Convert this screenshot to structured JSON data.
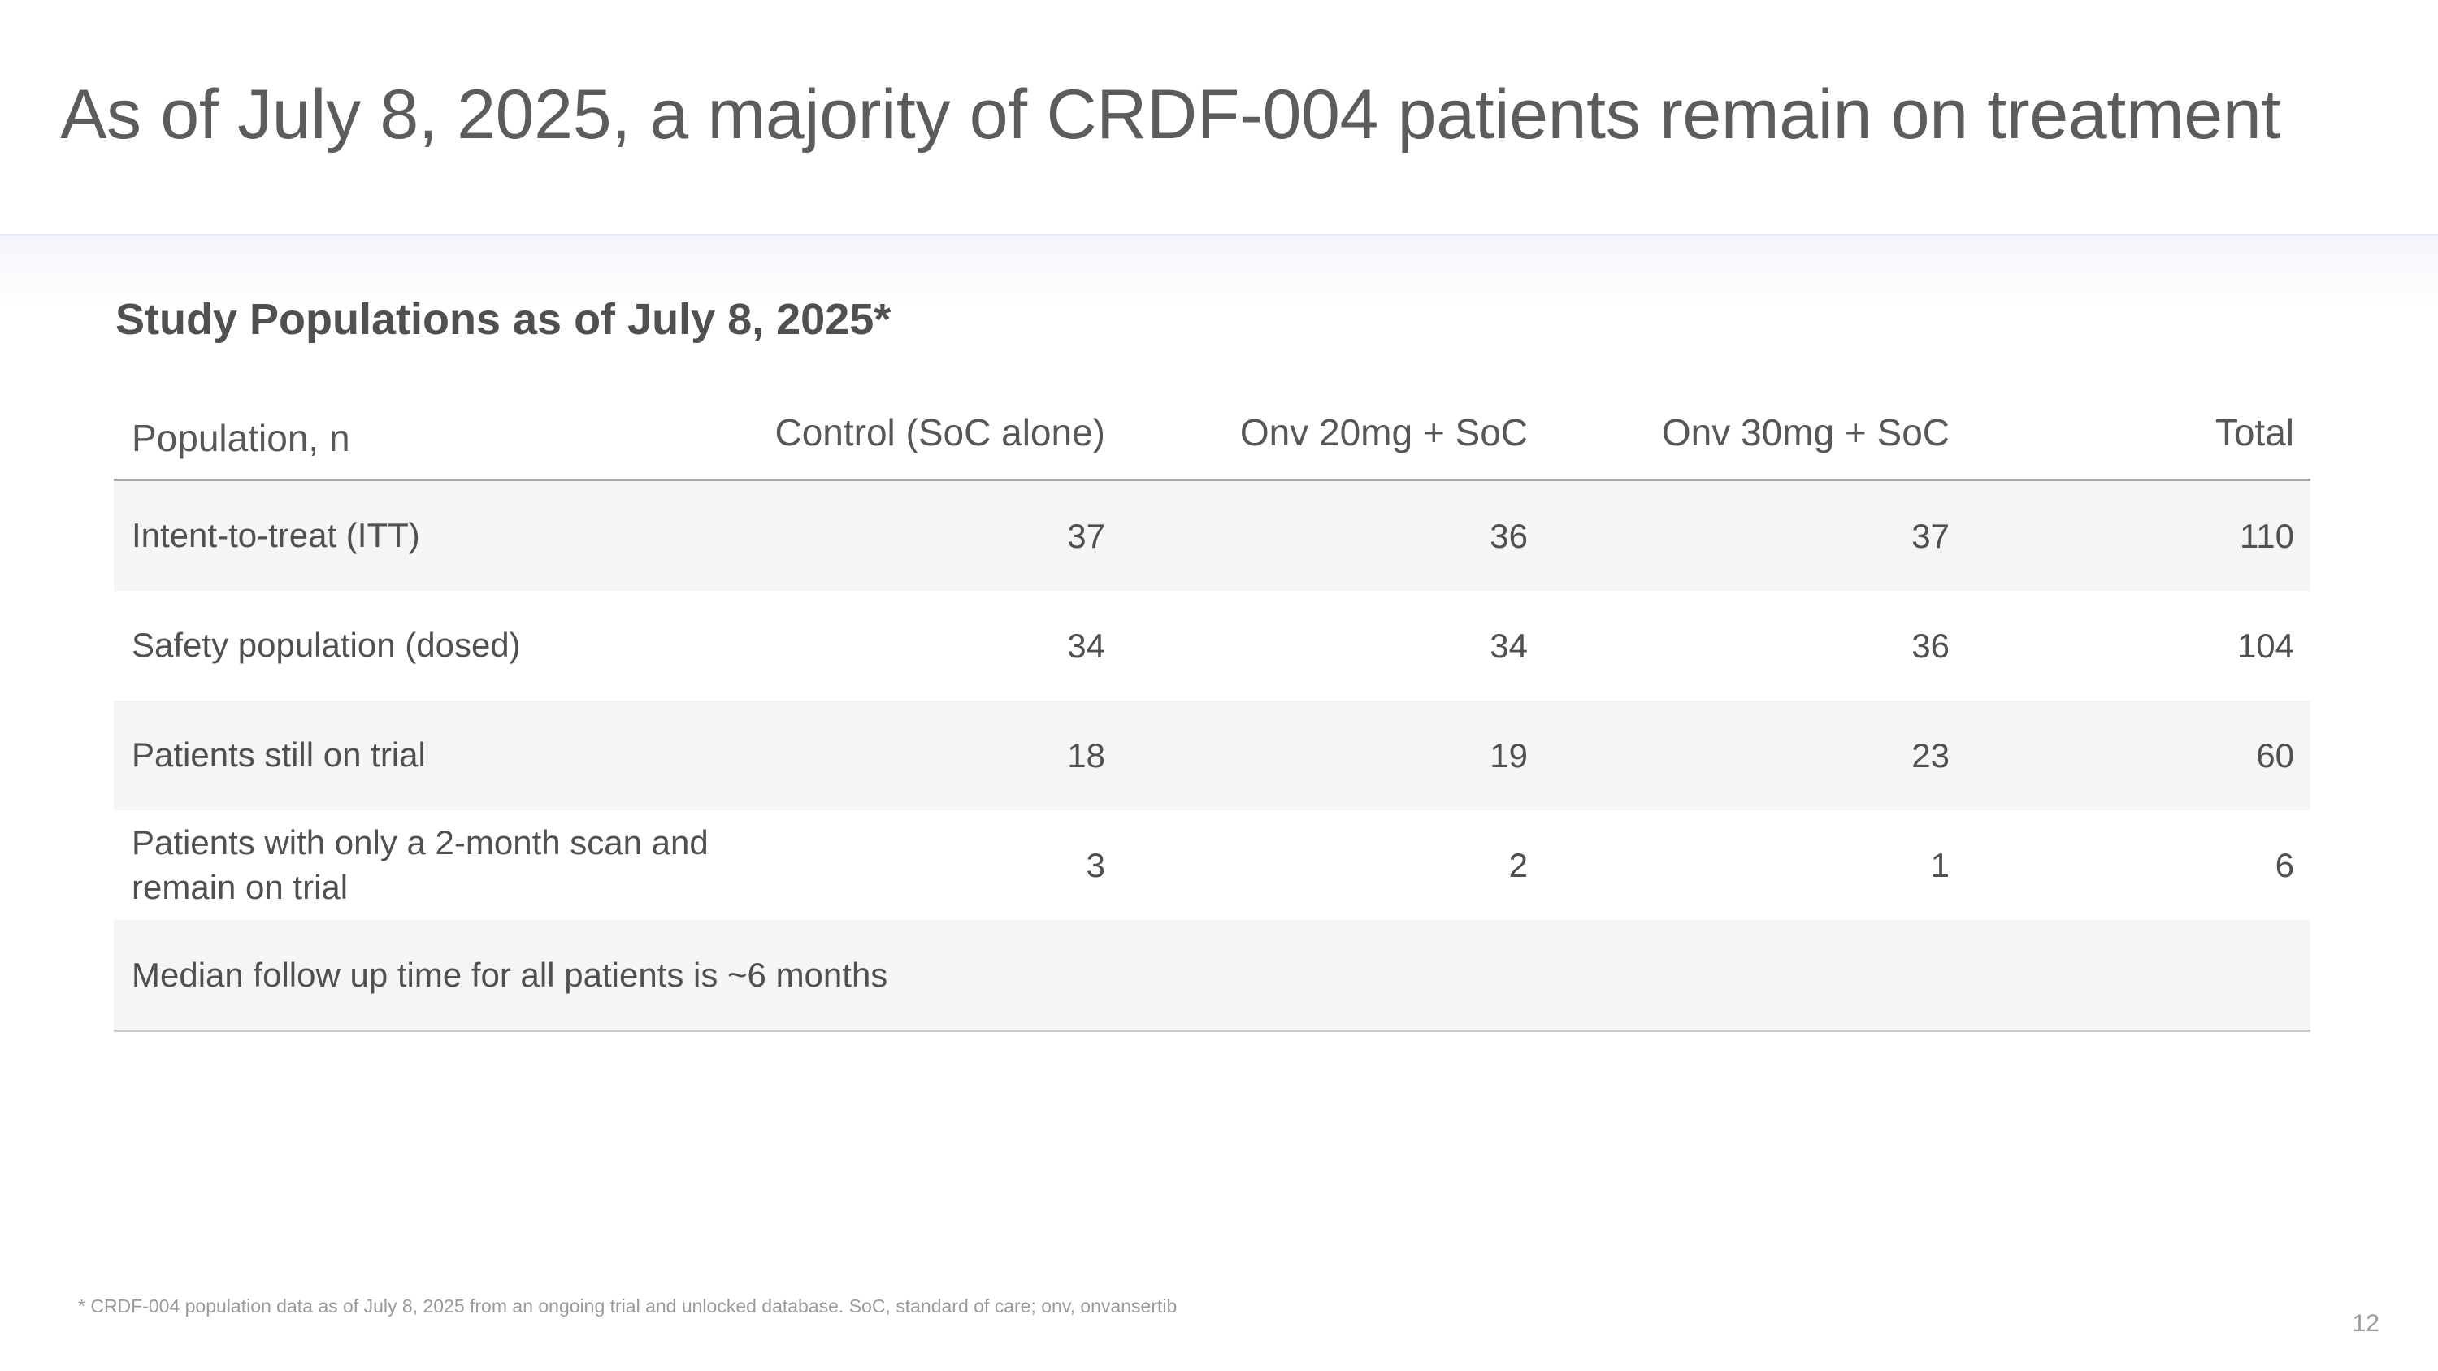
{
  "slide": {
    "title": "As of July 8, 2025, a majority of CRDF-004 patients remain on treatment",
    "section_heading": "Study Populations as of July 8, 2025*",
    "page_number": "12"
  },
  "table": {
    "headers": [
      "Population, n",
      "Control (SoC alone)",
      "Onv 20mg + SoC",
      "Onv 30mg + SoC",
      "Total"
    ],
    "rows": [
      {
        "label": "Intent-to-treat (ITT)",
        "values": [
          "37",
          "36",
          "37",
          "110"
        ]
      },
      {
        "label": "Safety population (dosed)",
        "values": [
          "34",
          "34",
          "36",
          "104"
        ]
      },
      {
        "label": "Patients still on trial",
        "values": [
          "18",
          "19",
          "23",
          "60"
        ]
      },
      {
        "label": "Patients with only a 2-month scan and remain on trial",
        "values": [
          "3",
          "2",
          "1",
          "6"
        ]
      }
    ],
    "note_row": "Median follow up time for all patients is ~6 months"
  },
  "footnote": "* CRDF-004 population data as of July 8, 2025 from an ongoing trial and unlocked database. SoC, standard of care; onv, onvansertib"
}
